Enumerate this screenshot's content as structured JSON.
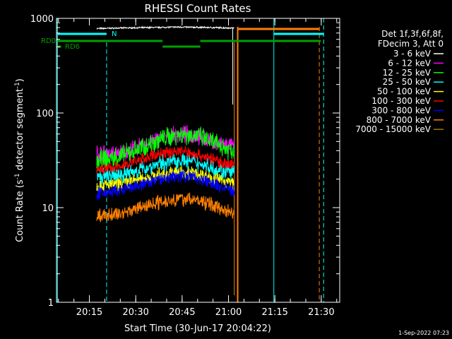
{
  "chart_data": {
    "type": "line",
    "title": "RHESSI Count Rates",
    "xlabel": "Start Time (30-Jun-17 20:04:22)",
    "ylabel_main": "Count Rate (s",
    "ylabel_sup1": "-1",
    "ylabel_mid": " detector segment",
    "ylabel_sup2": "-1",
    "ylabel_end": ")",
    "y_scale": "log",
    "ylim": [
      1,
      1000
    ],
    "xlim_minutes": [
      0,
      91.6
    ],
    "x_ticks": [
      {
        "label": "20:15",
        "minutes": 10.63
      },
      {
        "label": "20:30",
        "minutes": 25.63
      },
      {
        "label": "20:45",
        "minutes": 40.63
      },
      {
        "label": "21:00",
        "minutes": 55.63
      },
      {
        "label": "21:15",
        "minutes": 70.63
      },
      {
        "label": "21:30",
        "minutes": 85.63
      }
    ],
    "y_ticks": [
      {
        "label": "1",
        "value": 1
      },
      {
        "label": "10",
        "value": 10
      },
      {
        "label": "100",
        "value": 100
      },
      {
        "label": "1000",
        "value": 1000
      }
    ],
    "legend_header": [
      "Det 1f,3f,6f,8f,",
      "FDecim 3, Att 0"
    ],
    "legend_position": "right",
    "series": [
      {
        "name": "3 - 6 keV",
        "color": "#ffffff",
        "x": [
          13,
          20,
          30,
          40,
          50,
          57.5
        ],
        "y": [
          780,
          790,
          800,
          810,
          800,
          790
        ]
      },
      {
        "name": "6 - 12 keV",
        "color": "#ff00ff",
        "x": [
          13,
          20,
          27,
          33,
          40,
          45,
          50,
          55,
          57.5
        ],
        "y": [
          38,
          37,
          44,
          53,
          60,
          58,
          50,
          45,
          44
        ]
      },
      {
        "name": "12 - 25 keV",
        "color": "#00ff00",
        "x": [
          13,
          20,
          27,
          33,
          40,
          45,
          50,
          55,
          57.5
        ],
        "y": [
          31,
          34,
          42,
          52,
          60,
          58,
          50,
          42,
          40
        ]
      },
      {
        "name": "25 - 50 keV",
        "color": "#00ffff",
        "x": [
          13,
          20,
          27,
          33,
          40,
          45,
          50,
          55,
          57.5
        ],
        "y": [
          21,
          22,
          25,
          29,
          32,
          30,
          27,
          24,
          23
        ]
      },
      {
        "name": "50 - 100 keV",
        "color": "#ffff00",
        "x": [
          13,
          20,
          27,
          33,
          40,
          45,
          50,
          55,
          57.5
        ],
        "y": [
          17,
          18,
          20,
          22,
          24,
          23,
          21,
          19,
          18
        ]
      },
      {
        "name": "100 - 300 keV",
        "color": "#ff0000",
        "x": [
          13,
          20,
          27,
          33,
          40,
          45,
          50,
          55,
          57.5
        ],
        "y": [
          25,
          27,
          32,
          37,
          40,
          37,
          33,
          29,
          28
        ]
      },
      {
        "name": "300 - 800 keV",
        "color": "#0000ff",
        "x": [
          13,
          20,
          27,
          33,
          40,
          45,
          50,
          55,
          57.5
        ],
        "y": [
          14,
          15,
          17,
          20,
          22,
          21,
          18,
          16,
          15
        ]
      },
      {
        "name": "800 - 7000 keV",
        "color": "#ff8000",
        "x": [
          13,
          20,
          27,
          33,
          40,
          45,
          50,
          55,
          57.5
        ],
        "y": [
          8,
          8.6,
          10,
          11.5,
          12.5,
          12,
          10.8,
          9.4,
          8.8
        ]
      },
      {
        "name": "7000 - 15000 keV",
        "color": "#a07800",
        "x": [],
        "y": []
      }
    ],
    "annotations": [
      {
        "text": "RD0",
        "color": "#00a000"
      },
      {
        "text": "RD6",
        "color": "#00a000"
      },
      {
        "text": "N",
        "color": "#00ffff"
      }
    ],
    "timestamp": "1-Sep-2022 07:23"
  }
}
